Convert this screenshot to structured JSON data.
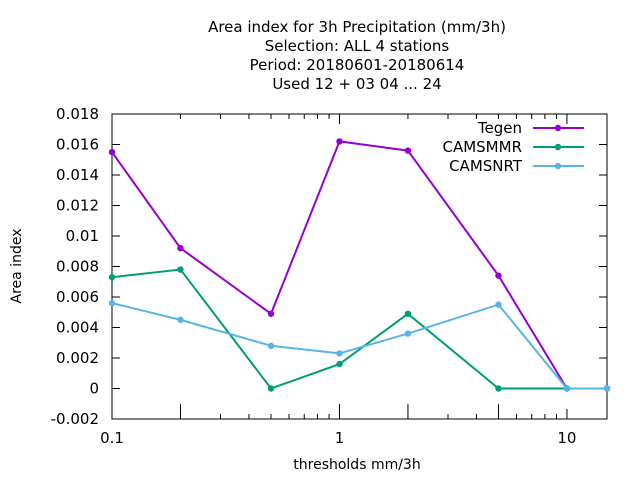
{
  "chart_data": {
    "type": "line",
    "title_lines": [
      "Area index  for 3h Precipitation (mm/3h)",
      "Selection: ALL      4 stations",
      "Period: 20180601-20180614",
      "Used  12 + 03 04 ... 24"
    ],
    "xlabel": "thresholds mm/3h",
    "ylabel": "Area index",
    "x_scale": "log",
    "xlim": [
      0.1,
      15
    ],
    "ylim": [
      -0.002,
      0.018
    ],
    "x_ticks": [
      0.1,
      1,
      10
    ],
    "x_tick_labels": [
      "0.1",
      "1",
      "10"
    ],
    "y_ticks": [
      -0.002,
      0,
      0.002,
      0.004,
      0.006,
      0.008,
      0.01,
      0.012,
      0.014,
      0.016,
      0.018
    ],
    "y_tick_labels": [
      "-0.002",
      "0",
      "0.002",
      "0.004",
      "0.006",
      "0.008",
      "0.01",
      "0.012",
      "0.014",
      "0.016",
      "0.018"
    ],
    "legend_position": "top-right",
    "grid": false,
    "x": [
      0.1,
      0.2,
      0.5,
      1,
      2,
      5,
      10,
      15
    ],
    "series": [
      {
        "name": "Tegen",
        "color": "#9400d3",
        "values": [
          0.0155,
          0.0092,
          0.0049,
          0.0162,
          0.0156,
          0.0074,
          0.0,
          0.0
        ]
      },
      {
        "name": "CAMSMMR",
        "color": "#009e73",
        "values": [
          0.0073,
          0.0078,
          0.0,
          0.0016,
          0.0049,
          0.0,
          0.0,
          0.0
        ]
      },
      {
        "name": "CAMSNRT",
        "color": "#56b4e9",
        "values": [
          0.0056,
          0.0045,
          0.0028,
          0.0023,
          0.0036,
          0.0055,
          0.0,
          0.0
        ]
      }
    ]
  }
}
